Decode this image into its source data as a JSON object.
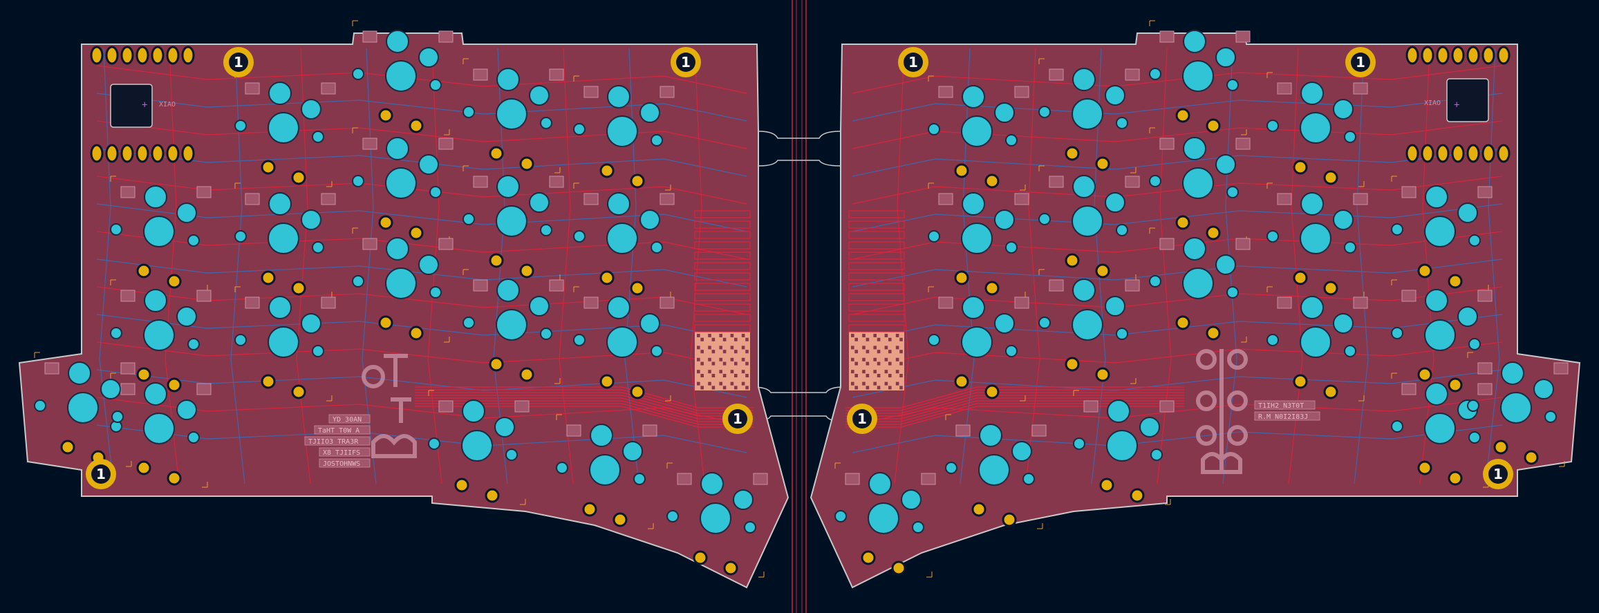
{
  "board": {
    "left": {
      "silk_label": "XIAO",
      "mounting_hole_labels": [
        "1",
        "1",
        "1",
        "1"
      ],
      "signature_block": [
        "YD 30AN",
        "TaHT T0W A",
        "TJIIO3 TRA3R",
        "X8 TJIIFS",
        "JOSTOHNWS"
      ]
    },
    "right": {
      "silk_label": "XIAO",
      "mounting_hole_labels": [
        "1",
        "1",
        "1",
        "1"
      ],
      "signature_block": [
        "T1IH2_N3T0T",
        "R.M N0I2I83J"
      ]
    },
    "colors": {
      "background": "#001023",
      "board_fill": "#86374C",
      "board_edge": "#C8C8C8",
      "copper_pad": "#E5B00C",
      "switch_pad": "#30C4D6",
      "trace_red": "#E0223C",
      "trace_blue": "#3B6BB5",
      "silk_pink": "#C98FA2",
      "courtyard": "#F09A2E",
      "cut_line": "#D12424"
    },
    "icons": [
      "mounting-hole-icon",
      "qr-code-icon",
      "switch-footprint-icon",
      "xiao-module-icon",
      "pin-header-icon"
    ]
  }
}
